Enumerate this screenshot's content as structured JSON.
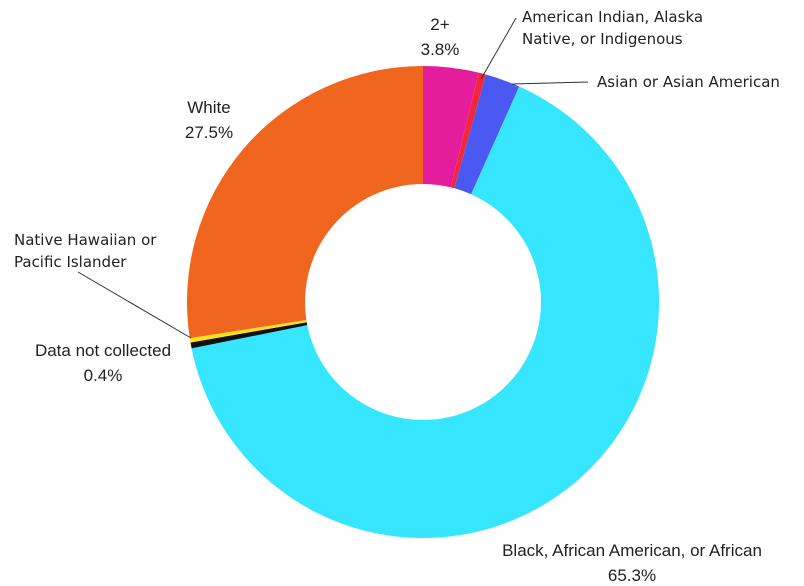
{
  "chart_data": {
    "type": "pie",
    "donut": true,
    "title": "",
    "slices": [
      {
        "key": "two_plus",
        "label": "2+",
        "value": 3.8,
        "value_label": "3.8%",
        "color": "#e51c9c"
      },
      {
        "key": "aian",
        "label": "American Indian, Alaska Native, or Indigenous",
        "label_lines": [
          "American Indian, Alaska",
          "Native, or Indigenous"
        ],
        "value": 0.5,
        "color": "#f2273a"
      },
      {
        "key": "asian",
        "label": "Asian or Asian American",
        "value": 2.4,
        "color": "#4a59f2"
      },
      {
        "key": "black",
        "label": "Black, African American, or African",
        "value": 65.3,
        "value_label": "65.3%",
        "color": "#36e6ff"
      },
      {
        "key": "not_collected",
        "label": "Data not collected",
        "value": 0.4,
        "value_label": "0.4%",
        "color": "#111111"
      },
      {
        "key": "nhpi",
        "label": "Native Hawaiian or Pacific Islander",
        "label_lines": [
          "Native Hawaiian or",
          "Pacific Islander"
        ],
        "value": 0.3,
        "color": "#ffe21a"
      },
      {
        "key": "white",
        "label": "White",
        "value": 27.5,
        "value_label": "27.5%",
        "color": "#f0661e"
      }
    ],
    "legend": "none"
  }
}
